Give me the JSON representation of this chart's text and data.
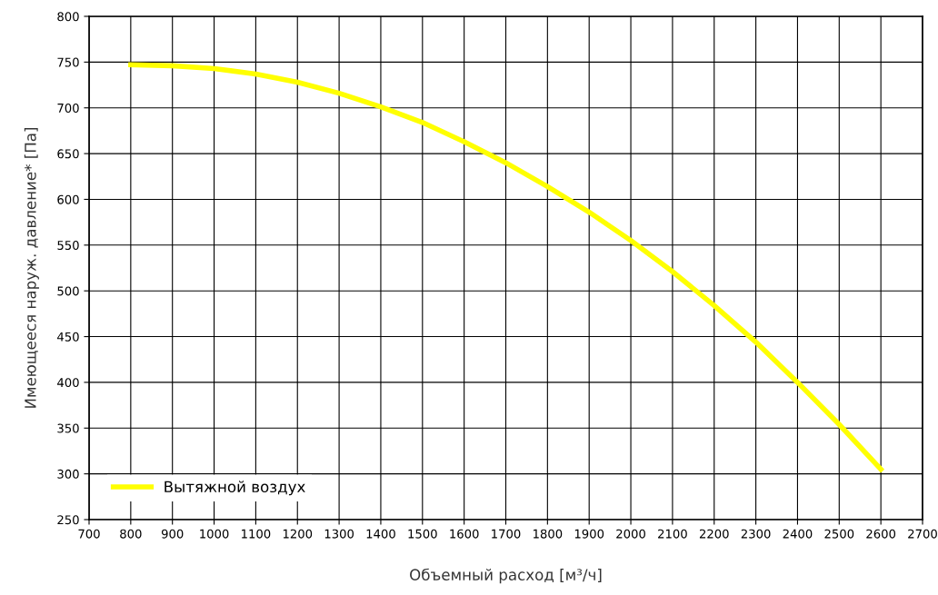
{
  "chart_data": {
    "type": "line",
    "xlabel": "Объемный расход [м³/ч]",
    "ylabel": "Имеющееся наруж. давление* [Па]",
    "x": [
      800,
      900,
      1000,
      1100,
      1200,
      1300,
      1400,
      1500,
      1600,
      1700,
      1800,
      1900,
      2000,
      2100,
      2200,
      2300,
      2400,
      2500,
      2600
    ],
    "series": [
      {
        "name": "Вытяжной воздух",
        "color": "#ffff00",
        "values": [
          747,
          746,
          743,
          737,
          728,
          716,
          701,
          684,
          663,
          640,
          614,
          586,
          555,
          521,
          484,
          444,
          400,
          354,
          305
        ]
      }
    ],
    "xlim": [
      700,
      2700
    ],
    "xticks": [
      700,
      800,
      900,
      1000,
      1100,
      1200,
      1300,
      1400,
      1500,
      1600,
      1700,
      1800,
      1900,
      2000,
      2100,
      2200,
      2300,
      2400,
      2500,
      2600,
      2700
    ],
    "ylim": [
      250,
      800
    ],
    "yticks": [
      250,
      300,
      350,
      400,
      450,
      500,
      550,
      600,
      650,
      700,
      750,
      800
    ],
    "grid": true,
    "legend": "bottom left",
    "marker": "none",
    "line_style": "solid"
  }
}
